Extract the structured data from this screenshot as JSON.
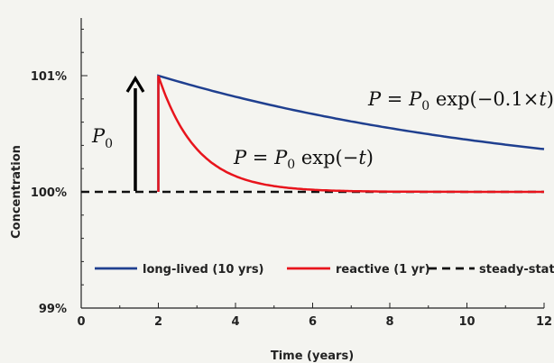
{
  "chart_data": {
    "type": "line",
    "title": "",
    "xlabel": "Time (years)",
    "ylabel": "Concentration",
    "xlim": [
      0,
      12
    ],
    "ylim": [
      99,
      101.5
    ],
    "x_ticks": [
      0,
      2,
      4,
      6,
      8,
      10,
      12
    ],
    "y_ticks": [
      99,
      100,
      101
    ],
    "y_tick_labels": [
      "99%",
      "100%",
      "101%"
    ],
    "grid": false,
    "legend_position": "lower-center",
    "series": [
      {
        "name": "long-lived (10 yrs)",
        "color": "#1f3f8f",
        "x": [
          0,
          2,
          2,
          3,
          4,
          5,
          6,
          7,
          8,
          9,
          10,
          11,
          12
        ],
        "y": [
          100,
          100,
          101,
          100.905,
          100.819,
          100.741,
          100.67,
          100.607,
          100.549,
          100.497,
          100.449,
          100.407,
          100.368
        ]
      },
      {
        "name": "reactive (1 yr)",
        "color": "#e8141c",
        "x": [
          0,
          2,
          2,
          2.5,
          3,
          3.5,
          4,
          4.5,
          5,
          6,
          7,
          8,
          10,
          12
        ],
        "y": [
          100,
          100,
          101,
          100.607,
          100.368,
          100.223,
          100.135,
          100.082,
          100.05,
          100.018,
          100.007,
          100.002,
          100,
          100
        ]
      },
      {
        "name": "steady-state",
        "color": "#111111",
        "dashed": true,
        "x": [
          0,
          12
        ],
        "y": [
          100,
          100
        ]
      }
    ],
    "annotations": {
      "pulse_label": "P",
      "pulse_label_sub": "0",
      "eq_long": "P = P0 exp(−0.1×t)",
      "eq_long_parts": [
        "P = P",
        "0",
        " exp(−0.1×",
        "t",
        ")"
      ],
      "eq_react": "P = P0 exp(−t)",
      "eq_react_parts": [
        "P = P",
        "0",
        " exp(−",
        "t",
        ")"
      ]
    }
  }
}
